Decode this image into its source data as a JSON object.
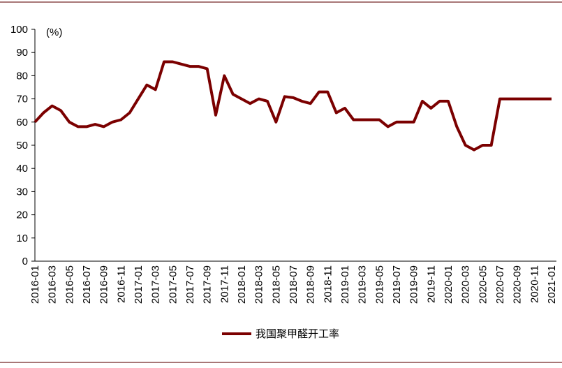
{
  "chart_data": {
    "type": "line",
    "y_label": "(%)",
    "categories": [
      "2016-01",
      null,
      "2016-03",
      null,
      "2016-05",
      null,
      "2016-07",
      null,
      "2016-09",
      null,
      "2016-11",
      null,
      "2017-01",
      null,
      "2017-03",
      null,
      "2017-05",
      null,
      "2017-07",
      null,
      "2017-09",
      null,
      "2017-11",
      null,
      "2018-01",
      null,
      "2018-03",
      null,
      "2018-05",
      null,
      "2018-07",
      null,
      "2018-09",
      null,
      "2018-11",
      null,
      "2019-01",
      null,
      "2019-03",
      null,
      "2019-05",
      null,
      "2019-07",
      null,
      "2019-09",
      null,
      "2019-11",
      null,
      "2020-01",
      null,
      "2020-03",
      null,
      "2020-05",
      null,
      "2020-07",
      null,
      "2020-09",
      null,
      "2020-11",
      null,
      "2021-01"
    ],
    "series": [
      {
        "name": "我国聚甲醛开工率",
        "color": "#7b0000",
        "values": [
          60,
          64,
          67,
          65,
          60,
          58,
          58,
          59,
          58,
          60,
          61,
          64,
          70,
          76,
          74,
          86,
          86,
          85,
          84,
          84,
          83,
          63,
          80,
          72,
          70,
          68,
          70,
          69,
          60,
          71,
          70.5,
          69,
          68,
          73,
          73,
          64,
          66,
          61,
          61,
          61,
          61,
          58,
          60,
          60,
          60,
          69,
          66,
          69,
          69,
          58,
          50,
          48,
          50,
          50,
          70,
          70,
          70,
          70,
          70,
          70,
          70
        ]
      }
    ],
    "ylim": [
      0,
      100
    ],
    "yticks": [
      0,
      10,
      20,
      30,
      40,
      50,
      60,
      70,
      80,
      90,
      100
    ],
    "grid": false,
    "legend": "bottom"
  }
}
